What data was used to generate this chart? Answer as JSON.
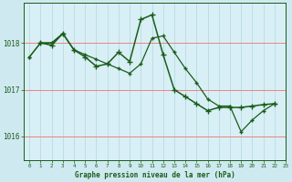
{
  "title": "Graphe pression niveau de la mer (hPa)",
  "background_color": "#cfe9f0",
  "plot_bg_color": "#d8eff5",
  "grid_h_color": "#f08080",
  "grid_v_color": "#b0d8e0",
  "line_color": "#1a5c1a",
  "marker_color": "#1a5c1a",
  "xlim": [
    -0.5,
    23
  ],
  "ylim": [
    1015.5,
    1018.85
  ],
  "yticks": [
    1016,
    1017,
    1018
  ],
  "xticks": [
    0,
    1,
    2,
    3,
    4,
    5,
    6,
    7,
    8,
    9,
    10,
    11,
    12,
    13,
    14,
    15,
    16,
    17,
    18,
    19,
    20,
    21,
    22,
    23
  ],
  "series1": [
    0,
    1,
    2,
    3,
    4,
    5,
    6,
    7,
    8,
    9,
    10,
    11,
    12,
    13,
    14,
    15,
    16,
    17,
    18,
    19,
    20,
    21,
    22
  ],
  "series1_y": [
    1017.7,
    1018.0,
    1018.0,
    1018.2,
    1017.85,
    1017.75,
    1017.65,
    1017.55,
    1017.45,
    1017.35,
    1017.55,
    1018.1,
    1018.15,
    1017.8,
    1017.45,
    1017.15,
    1016.8,
    1016.65,
    1016.65,
    1016.1,
    1016.35,
    1016.55,
    1016.7
  ],
  "series2": [
    1,
    2,
    3,
    4,
    5,
    6,
    7,
    8,
    9,
    10,
    11,
    12,
    13,
    14,
    15,
    16,
    17,
    18,
    19,
    20,
    21,
    22
  ],
  "series2_y": [
    1018.0,
    1017.95,
    1018.2,
    1017.85,
    1017.7,
    1017.5,
    1017.55,
    1017.8,
    1017.6,
    1018.5,
    1018.6,
    1017.75,
    1017.0,
    1016.85,
    1016.7,
    1016.55,
    1016.62,
    1016.62,
    1016.62,
    1016.65,
    1016.68,
    1016.7
  ],
  "series3": [
    0,
    1,
    2,
    3
  ],
  "series3_y": [
    1017.7,
    1018.0,
    1018.0,
    1018.2
  ],
  "xlabel_fontsize": 5.5,
  "ytick_fontsize": 5.5,
  "xtick_fontsize": 4.2
}
